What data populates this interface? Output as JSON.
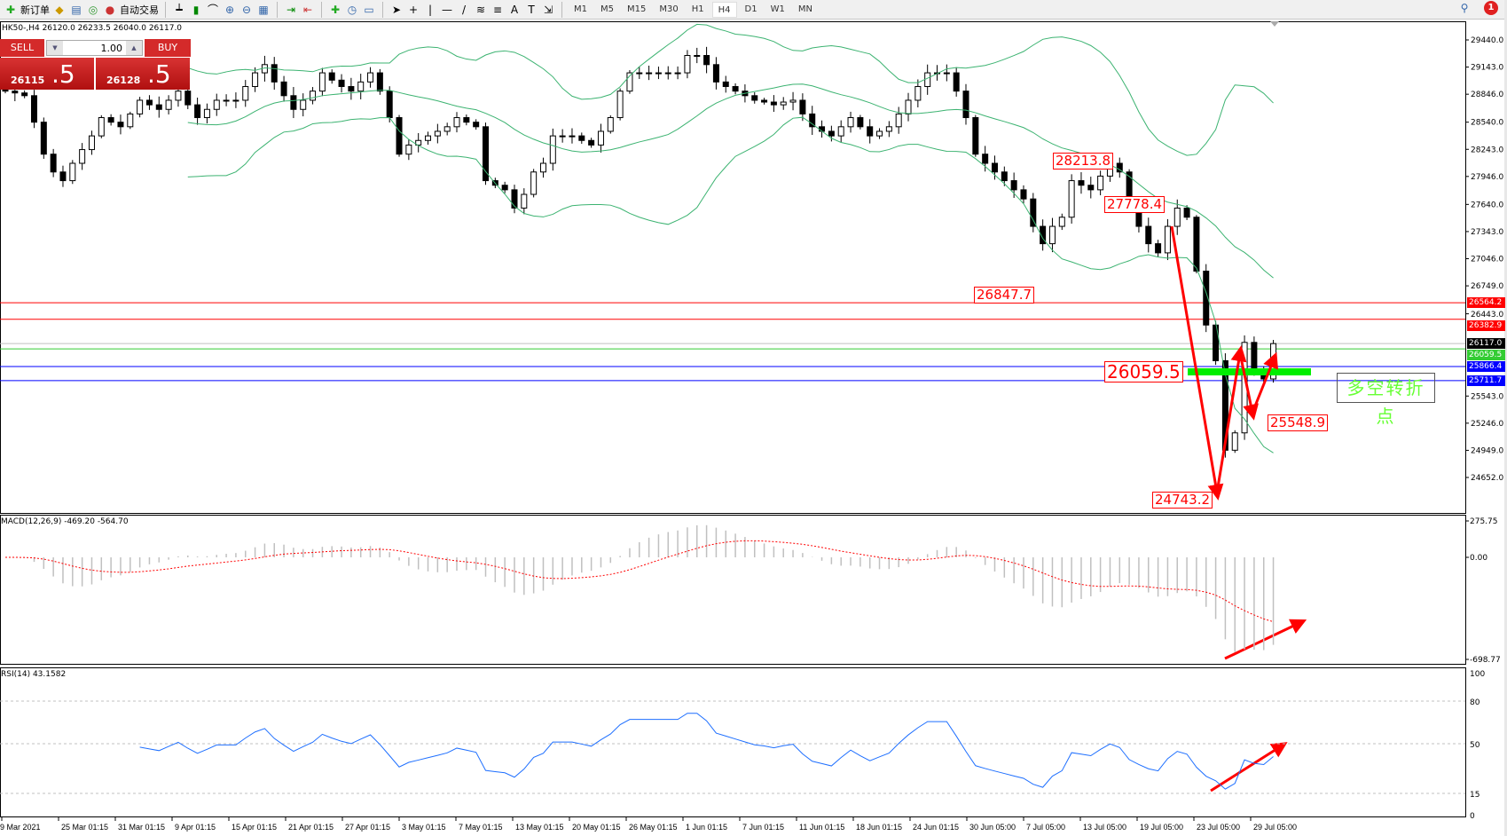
{
  "toolbar": {
    "new_order": "新订单",
    "auto_trading": "自动交易",
    "timeframes": [
      "M1",
      "M5",
      "M15",
      "M30",
      "H1",
      "H4",
      "D1",
      "W1",
      "MN"
    ],
    "active_timeframe": "H4",
    "notification_count": "1",
    "icons": [
      "new-order-icon",
      "market-watch-icon",
      "navigator-icon",
      "signals-icon",
      "auto-trading-icon",
      "bar-chart-icon",
      "candle-chart-icon",
      "line-chart-icon",
      "zoom-in-icon",
      "zoom-out-icon",
      "tile-windows-icon",
      "autoscroll-icon",
      "chart-shift-icon",
      "indicators-icon",
      "periods-icon",
      "templates-icon",
      "cursor-icon",
      "crosshair-icon",
      "vertical-line-icon",
      "horizontal-line-icon",
      "trendline-icon",
      "fibonacci-icon",
      "fibonacci-fan-icon",
      "text-icon",
      "text-label-icon",
      "arrows-icon",
      "search-icon",
      "notification-icon"
    ]
  },
  "symbol": {
    "info": "HK50-,H4  26120.0 26233.5 26040.0 26117.0"
  },
  "trade_panel": {
    "sell": "SELL",
    "buy": "BUY",
    "lot": "1.00",
    "sell_small": "26115",
    "sell_big": ".5",
    "buy_small": "26128",
    "buy_big": ".5",
    "color": "#d42a2a"
  },
  "price_axis": {
    "ticks": [
      "29440.0",
      "29143.0",
      "28846.0",
      "28540.0",
      "28243.0",
      "27946.0",
      "27640.0",
      "27343.0",
      "27046.0",
      "26749.0",
      "26443.0",
      "25543.0",
      "25246.0",
      "24949.0",
      "24652.0"
    ],
    "range": [
      24652.0,
      29440.0
    ]
  },
  "levels": [
    {
      "value": 26564.2,
      "label": "26564.2",
      "color": "#ff0000"
    },
    {
      "value": 26382.9,
      "label": "26382.9",
      "color": "#ff0000"
    },
    {
      "value": 26117.0,
      "label": "26117.0",
      "color": "#000000"
    },
    {
      "value": 26059.5,
      "label": "26059.5",
      "color": "#33cc33"
    },
    {
      "value": 25866.4,
      "label": "25866.4",
      "color": "#0000ff"
    },
    {
      "value": 25711.7,
      "label": "25711.7",
      "color": "#0000ff"
    }
  ],
  "annotations": {
    "high1": "28213.8",
    "level1": "27778.4",
    "low1": "26847.7",
    "pivot": "26059.5",
    "low3": "25548.9",
    "low2": "24743.2",
    "text": "多空转折点",
    "arrow_color": "#ff0000",
    "pivot_bar_color": "#00ee00",
    "text_color": "#66ff33"
  },
  "macd": {
    "label": "MACD(12,26,9) -469.20 -564.70",
    "ticks": [
      "275.75",
      "0.00",
      "-698.77"
    ],
    "range": [
      -698.77,
      275.75
    ],
    "hist_color": "#c0c0c0",
    "signal_color": "#ff0000"
  },
  "rsi": {
    "label": "RSI(14) 43.1582",
    "ticks": [
      "100",
      "80",
      "50",
      "15",
      "0"
    ],
    "levels": [
      80,
      50,
      15
    ],
    "color": "#1e6fff"
  },
  "dates": [
    "9 Mar 2021",
    "25 Mar 01:15",
    "31 Mar 01:15",
    "9 Apr 01:15",
    "15 Apr 01:15",
    "21 Apr 01:15",
    "27 Apr 01:15",
    "3 May 01:15",
    "7 May 01:15",
    "13 May 01:15",
    "20 May 01:15",
    "26 May 01:15",
    "1 Jun 01:15",
    "7 Jun 01:15",
    "11 Jun 01:15",
    "18 Jun 01:15",
    "24 Jun 01:15",
    "30 Jun 05:00",
    "7 Jul 05:00",
    "13 Jul 05:00",
    "19 Jul 05:00",
    "23 Jul 05:00",
    "29 Jul 05:00"
  ],
  "chart_data": {
    "type": "candlestick",
    "symbol": "HK50-",
    "timeframe": "H4",
    "bollinger_color": "#3cb371",
    "closes": [
      28880,
      28860,
      28830,
      28540,
      28190,
      27995,
      27900,
      28090,
      28240,
      28390,
      28590,
      28540,
      28490,
      28630,
      28780,
      28730,
      28680,
      28780,
      28880,
      28730,
      28590,
      28680,
      28780,
      28780,
      28780,
      28930,
      29080,
      29170,
      28980,
      28830,
      28680,
      28780,
      28880,
      29080,
      29000,
      28930,
      28880,
      28980,
      29080,
      28880,
      28590,
      28190,
      28290,
      28340,
      28390,
      28440,
      28490,
      28590,
      28540,
      28490,
      27900,
      27850,
      27800,
      27600,
      27750,
      27995,
      28090,
      28390,
      28390,
      28390,
      28340,
      28290,
      28440,
      28590,
      28880,
      29080,
      29080,
      29080,
      29080,
      29080,
      29080,
      29270,
      29270,
      29170,
      28980,
      28930,
      28880,
      28830,
      28780,
      28760,
      28730,
      28760,
      28780,
      28630,
      28490,
      28440,
      28390,
      28490,
      28590,
      28490,
      28390,
      28440,
      28490,
      28630,
      28780,
      28930,
      29080,
      29080,
      29080,
      28880,
      28590,
      28190,
      28090,
      27995,
      27900,
      27800,
      27700,
      27400,
      27210,
      27400,
      27500,
      27900,
      27850,
      27800,
      27950,
      28090,
      27995,
      27600,
      27400,
      27210,
      27110,
      27400,
      27600,
      27500,
      26910,
      26320,
      25930,
      24950,
      25140,
      26130,
      25830,
      25730,
      26117
    ]
  }
}
